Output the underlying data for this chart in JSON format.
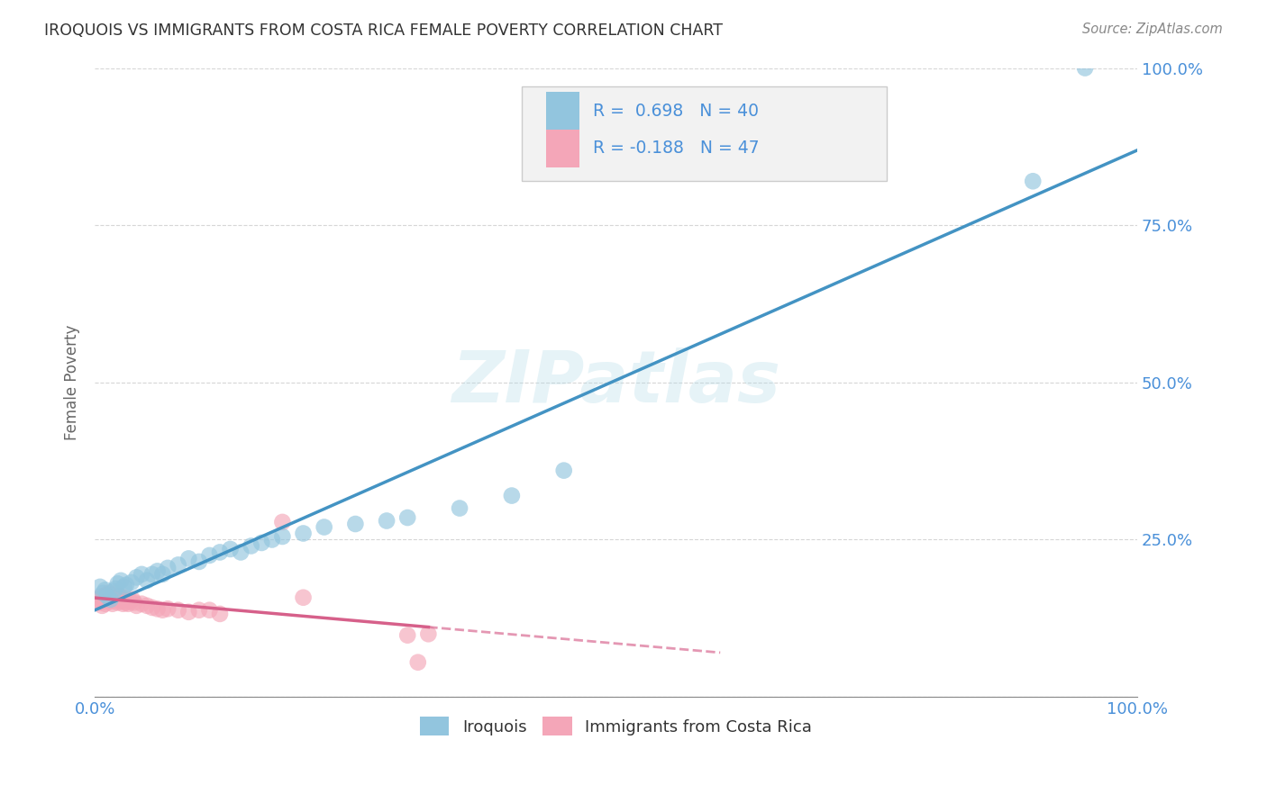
{
  "title": "IROQUOIS VS IMMIGRANTS FROM COSTA RICA FEMALE POVERTY CORRELATION CHART",
  "source": "Source: ZipAtlas.com",
  "ylabel": "Female Poverty",
  "watermark": "ZIPatlas",
  "legend_label_1": "Iroquois",
  "legend_label_2": "Immigrants from Costa Rica",
  "R1": 0.698,
  "N1": 40,
  "R2": -0.188,
  "N2": 47,
  "color_blue": "#92c5de",
  "color_pink": "#f4a6b8",
  "line_color_blue": "#4393c3",
  "line_color_pink": "#d6608a",
  "background_color": "#ffffff",
  "grid_color": "#cccccc",
  "title_color": "#333333",
  "axis_label_color": "#4a90d9",
  "xlim": [
    0,
    1
  ],
  "ylim": [
    0,
    1
  ],
  "iroquois_x": [
    0.005,
    0.008,
    0.01,
    0.012,
    0.015,
    0.018,
    0.02,
    0.022,
    0.025,
    0.028,
    0.03,
    0.035,
    0.04,
    0.045,
    0.05,
    0.055,
    0.06,
    0.065,
    0.07,
    0.08,
    0.09,
    0.1,
    0.11,
    0.12,
    0.13,
    0.14,
    0.15,
    0.16,
    0.17,
    0.18,
    0.2,
    0.22,
    0.25,
    0.28,
    0.3,
    0.35,
    0.4,
    0.45,
    0.9,
    0.95
  ],
  "iroquois_y": [
    0.175,
    0.165,
    0.17,
    0.16,
    0.155,
    0.168,
    0.172,
    0.18,
    0.185,
    0.175,
    0.178,
    0.182,
    0.19,
    0.195,
    0.185,
    0.195,
    0.2,
    0.195,
    0.205,
    0.21,
    0.22,
    0.215,
    0.225,
    0.23,
    0.235,
    0.23,
    0.24,
    0.245,
    0.25,
    0.255,
    0.26,
    0.27,
    0.275,
    0.28,
    0.285,
    0.3,
    0.32,
    0.36,
    0.82,
    1.0
  ],
  "costa_rica_x": [
    0.003,
    0.005,
    0.006,
    0.007,
    0.008,
    0.009,
    0.01,
    0.011,
    0.012,
    0.013,
    0.014,
    0.015,
    0.016,
    0.017,
    0.018,
    0.019,
    0.02,
    0.021,
    0.022,
    0.023,
    0.024,
    0.025,
    0.026,
    0.027,
    0.028,
    0.03,
    0.032,
    0.034,
    0.036,
    0.038,
    0.04,
    0.045,
    0.05,
    0.055,
    0.06,
    0.065,
    0.07,
    0.08,
    0.09,
    0.1,
    0.11,
    0.12,
    0.18,
    0.2,
    0.3,
    0.31,
    0.32
  ],
  "costa_rica_y": [
    0.155,
    0.15,
    0.16,
    0.145,
    0.158,
    0.152,
    0.148,
    0.162,
    0.155,
    0.165,
    0.155,
    0.158,
    0.152,
    0.148,
    0.16,
    0.155,
    0.165,
    0.158,
    0.15,
    0.155,
    0.16,
    0.155,
    0.152,
    0.148,
    0.158,
    0.15,
    0.148,
    0.152,
    0.155,
    0.15,
    0.145,
    0.148,
    0.145,
    0.142,
    0.14,
    0.138,
    0.14,
    0.138,
    0.135,
    0.138,
    0.138,
    0.132,
    0.278,
    0.158,
    0.098,
    0.055,
    0.1
  ]
}
